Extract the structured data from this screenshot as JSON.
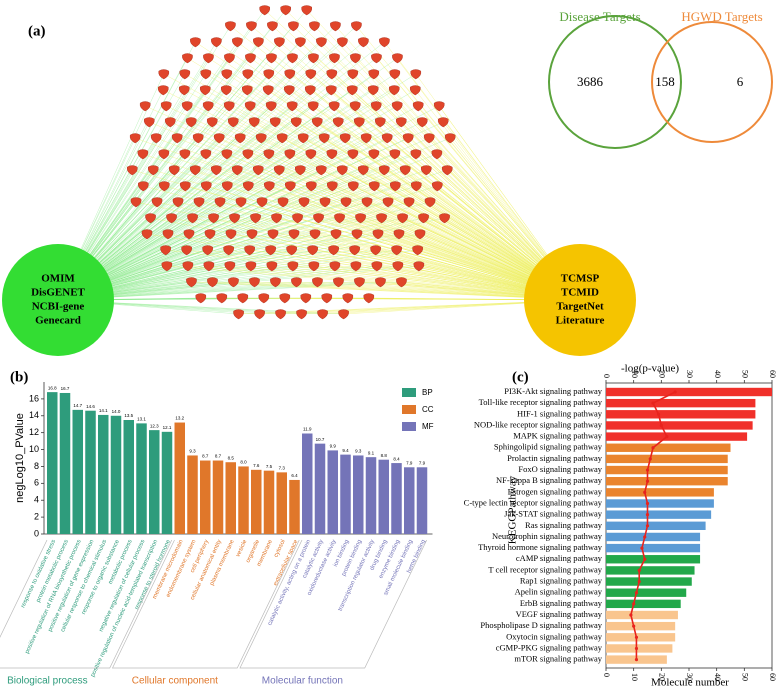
{
  "panel_labels": [
    "(a)",
    "(b)",
    "(c)"
  ],
  "network": {
    "left_hub": [
      "OMIM",
      "DisGENET",
      "NCBI-gene",
      "Genecard"
    ],
    "left_color": "#33dd33",
    "right_hub": [
      "TCMSP",
      "TCMID",
      "TargetNet",
      "Literature"
    ],
    "right_color": "#f5c400"
  },
  "chart_data": [
    {
      "type": "venn",
      "sets": [
        {
          "name": "Disease Targets",
          "color": "#5aa33c"
        },
        {
          "name": "HGWD Targets",
          "color": "#ee8a3a"
        }
      ],
      "values": [
        3686,
        158,
        6
      ]
    },
    {
      "type": "grouped-bar",
      "ylabel": "negLog10_PValue",
      "ylim": [
        0,
        18
      ],
      "yticks": [
        0,
        2,
        4,
        6,
        8,
        10,
        12,
        14,
        16
      ],
      "series": [
        {
          "name": "BP",
          "label": "Biological process",
          "color": "#2e9c7c",
          "categories": [
            "response to oxidative stress",
            "protein metabolic process",
            "positive regulation of RNA biosynthetic process",
            "positive regulation of gene expression",
            "cellular response to chemical stimulus",
            "response to organic substance",
            "metabolic process",
            "negative regulation of cellular process",
            "positive regulation of nucleic acid-templated transcription",
            "response to steroid hormone"
          ],
          "values": [
            16.8,
            16.7,
            14.7,
            14.6,
            14.1,
            14.0,
            13.5,
            13.1,
            12.3,
            12.1
          ],
          "value_labels": [
            "16.8",
            "16.7",
            "14.7",
            "14.6",
            "14.1",
            "14.0",
            "13.5",
            "13.1",
            "12.3",
            "12.1"
          ]
        },
        {
          "name": "CC",
          "label": "Cellular component",
          "color": "#e0772a",
          "categories": [
            "membrane microdomain",
            "endomembrane system",
            "cell periphery",
            "cellular anatomical entity",
            "plasma membrane",
            "vesicle",
            "organelle",
            "membrane",
            "cytosol",
            "extracellular space"
          ],
          "values": [
            13.2,
            9.3,
            8.7,
            8.7,
            8.5,
            8.0,
            7.6,
            7.5,
            7.3,
            6.4
          ],
          "value_labels": [
            "13.2",
            "9.3",
            "8.7",
            "8.7",
            "8.5",
            "8.0",
            "7.6",
            "7.5",
            "7.3",
            "6.4"
          ]
        },
        {
          "name": "MF",
          "label": "Molecular function",
          "color": "#7474b8",
          "categories": [
            "catalytic activity, acting on a protein",
            "catalytic activity",
            "oxidoreductase activity",
            "ion binding",
            "protein binding",
            "transcription regulator activity",
            "drug binding",
            "enzyme binding",
            "small molecule binding",
            "heme binding"
          ],
          "values": [
            11.9,
            10.7,
            9.9,
            9.4,
            9.3,
            9.1,
            8.8,
            8.4,
            7.9,
            7.9
          ],
          "value_labels": [
            "11.9",
            "10.7",
            "9.9",
            "9.4",
            "9.3",
            "9.1",
            "8.8",
            "8.4",
            "7.9",
            "7.9"
          ]
        }
      ]
    },
    {
      "type": "bar-line-horizontal",
      "title": "-log(p-value)",
      "xlabel": "Molecule number",
      "ylabel": "KEGGPathway",
      "categories": [
        "PI3K-Akt signaling pathway",
        "Toll-like receptor signaling pathway",
        "HIF-1 signaling pathway",
        "NOD-like receptor signaling pathway",
        "MAPK signaling pathway",
        "Sphingolipid signaling pathway",
        "Prolactin signaling pathway",
        "FoxO signaling pathway",
        "NF-kappa B signaling pathway",
        "Estrogen signaling pathway",
        "C-type lectin receptor signaling pathway",
        "Jak-STAT signaling pathway",
        "Ras signaling pathway",
        "Neurotrophin signaling pathway",
        "Thyroid hormone signaling pathway",
        "cAMP signaling pathway",
        "T cell receptor signaling pathway",
        "Rap1 signaling pathway",
        "Apelin signaling pathway",
        "ErbB signaling pathway",
        "VEGF signaling pathway",
        "Phospholipase D signaling pathway",
        "Oxytocin signaling pathway",
        "cGMP-PKG signaling pathway",
        "mTOR signaling pathway"
      ],
      "xlim": [
        0,
        60
      ],
      "xticks": [
        0,
        10,
        20,
        30,
        40,
        50,
        60
      ],
      "x2lim": [
        0,
        60
      ],
      "x2ticks": [
        0,
        10,
        20,
        30,
        40,
        50,
        60
      ],
      "bars": {
        "values": [
          60,
          54,
          54,
          53,
          51,
          45,
          44,
          44,
          44,
          39,
          39,
          38,
          36,
          34,
          34,
          34,
          32,
          31,
          29,
          27,
          26,
          25,
          25,
          24,
          22
        ],
        "colors": [
          "#f0302a",
          "#f0302a",
          "#f0302a",
          "#f0302a",
          "#f0302a",
          "#ea842e",
          "#ea842e",
          "#ea842e",
          "#ea842e",
          "#ea842e",
          "#5b9bd5",
          "#5b9bd5",
          "#5b9bd5",
          "#5b9bd5",
          "#5b9bd5",
          "#22a84a",
          "#22a84a",
          "#22a84a",
          "#22a84a",
          "#22a84a",
          "#f9c58e",
          "#f9c58e",
          "#f9c58e",
          "#f9c58e",
          "#f9c58e"
        ]
      },
      "line": {
        "axis": "x2",
        "color": "#e8231d",
        "values": [
          25,
          17,
          19,
          20,
          22,
          17,
          16,
          15,
          15,
          14,
          15,
          15,
          15,
          14,
          13,
          14,
          12,
          12,
          11,
          10,
          9,
          10,
          11,
          11,
          11
        ]
      }
    }
  ]
}
